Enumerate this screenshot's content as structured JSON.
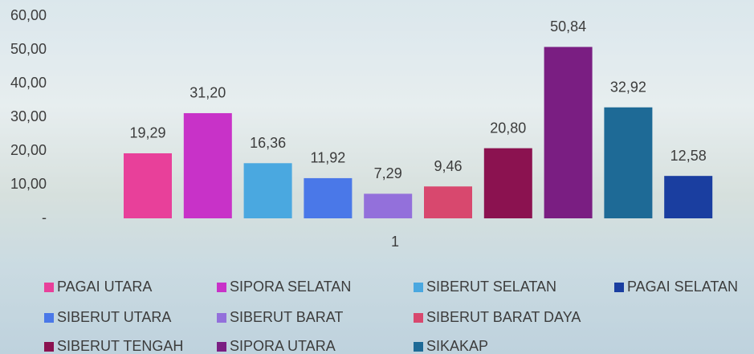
{
  "chart_data": {
    "type": "bar",
    "categories": [
      "1"
    ],
    "series": [
      {
        "name": "PAGAI UTARA",
        "color": "#e8409a",
        "values": [
          19.29
        ],
        "value_labels": [
          "19,29"
        ]
      },
      {
        "name": "SIPORA SELATAN",
        "color": "#c832c8",
        "values": [
          31.2
        ],
        "value_labels": [
          "31,20"
        ]
      },
      {
        "name": "SIBERUT SELATAN",
        "color": "#4aa8e0",
        "values": [
          16.36
        ],
        "value_labels": [
          "16,36"
        ]
      },
      {
        "name": "SIBERUT UTARA",
        "color": "#4a78e8",
        "values": [
          11.92
        ],
        "value_labels": [
          "11,92"
        ]
      },
      {
        "name": "SIBERUT BARAT",
        "color": "#9370db",
        "values": [
          7.29
        ],
        "value_labels": [
          "7,29"
        ]
      },
      {
        "name": "SIBERUT BARAT DAYA",
        "color": "#d8486e",
        "values": [
          9.46
        ],
        "value_labels": [
          "9,46"
        ]
      },
      {
        "name": "SIBERUT TENGAH",
        "color": "#8b1250",
        "values": [
          20.8
        ],
        "value_labels": [
          "20,80"
        ]
      },
      {
        "name": "SIPORA UTARA",
        "color": "#7a1e82",
        "values": [
          50.84
        ],
        "value_labels": [
          "50,84"
        ]
      },
      {
        "name": "SIKAKAP",
        "color": "#1e6a96",
        "values": [
          32.92
        ],
        "value_labels": [
          "32,92"
        ]
      },
      {
        "name": "PAGAI SELATAN",
        "color": "#1a3ea0",
        "values": [
          12.58
        ],
        "value_labels": [
          "12,58"
        ]
      }
    ],
    "ylim": [
      0,
      60
    ],
    "yticks": [
      {
        "value": 0,
        "label": "-"
      },
      {
        "value": 10,
        "label": "10,00"
      },
      {
        "value": 20,
        "label": "20,00"
      },
      {
        "value": 30,
        "label": "30,00"
      },
      {
        "value": 40,
        "label": "40,00"
      },
      {
        "value": 50,
        "label": "50,00"
      },
      {
        "value": 60,
        "label": "60,00"
      }
    ],
    "grid": false
  }
}
